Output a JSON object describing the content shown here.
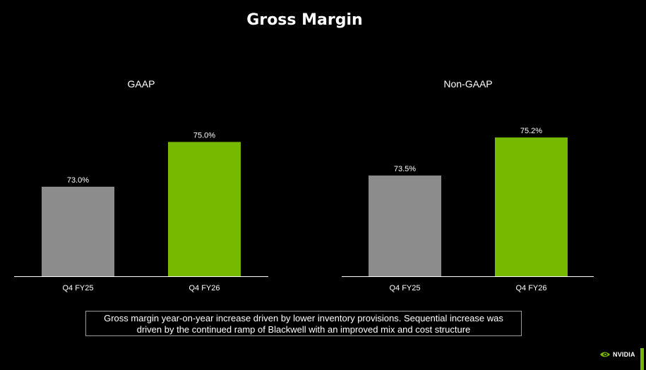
{
  "title": "Gross Margin",
  "colors": {
    "prior": "#8c8c8c",
    "current": "#76b900",
    "background": "#000000",
    "axis": "#ffffff"
  },
  "chart_data": [
    {
      "type": "bar",
      "title": "GAAP",
      "categories": [
        "Q4 FY25",
        "Q4 FY26"
      ],
      "values": [
        73.0,
        75.0
      ],
      "data_labels": [
        "73.0%",
        "75.0%"
      ],
      "ylim": [
        69.0,
        75.8
      ],
      "grid": false
    },
    {
      "type": "bar",
      "title": "Non-GAAP",
      "categories": [
        "Q4 FY25",
        "Q4 FY26"
      ],
      "values": [
        73.5,
        75.2
      ],
      "data_labels": [
        "73.5%",
        "75.2%"
      ],
      "ylim": [
        69.0,
        75.8
      ],
      "grid": false
    }
  ],
  "note": {
    "line1": "Gross margin year-on-year increase driven by lower inventory provisions. Sequential increase was",
    "line2": "driven by the continued ramp of Blackwell with an improved mix and cost structure"
  },
  "logo": {
    "text": "NVIDIA",
    "icon": "nvidia-eye-icon"
  }
}
